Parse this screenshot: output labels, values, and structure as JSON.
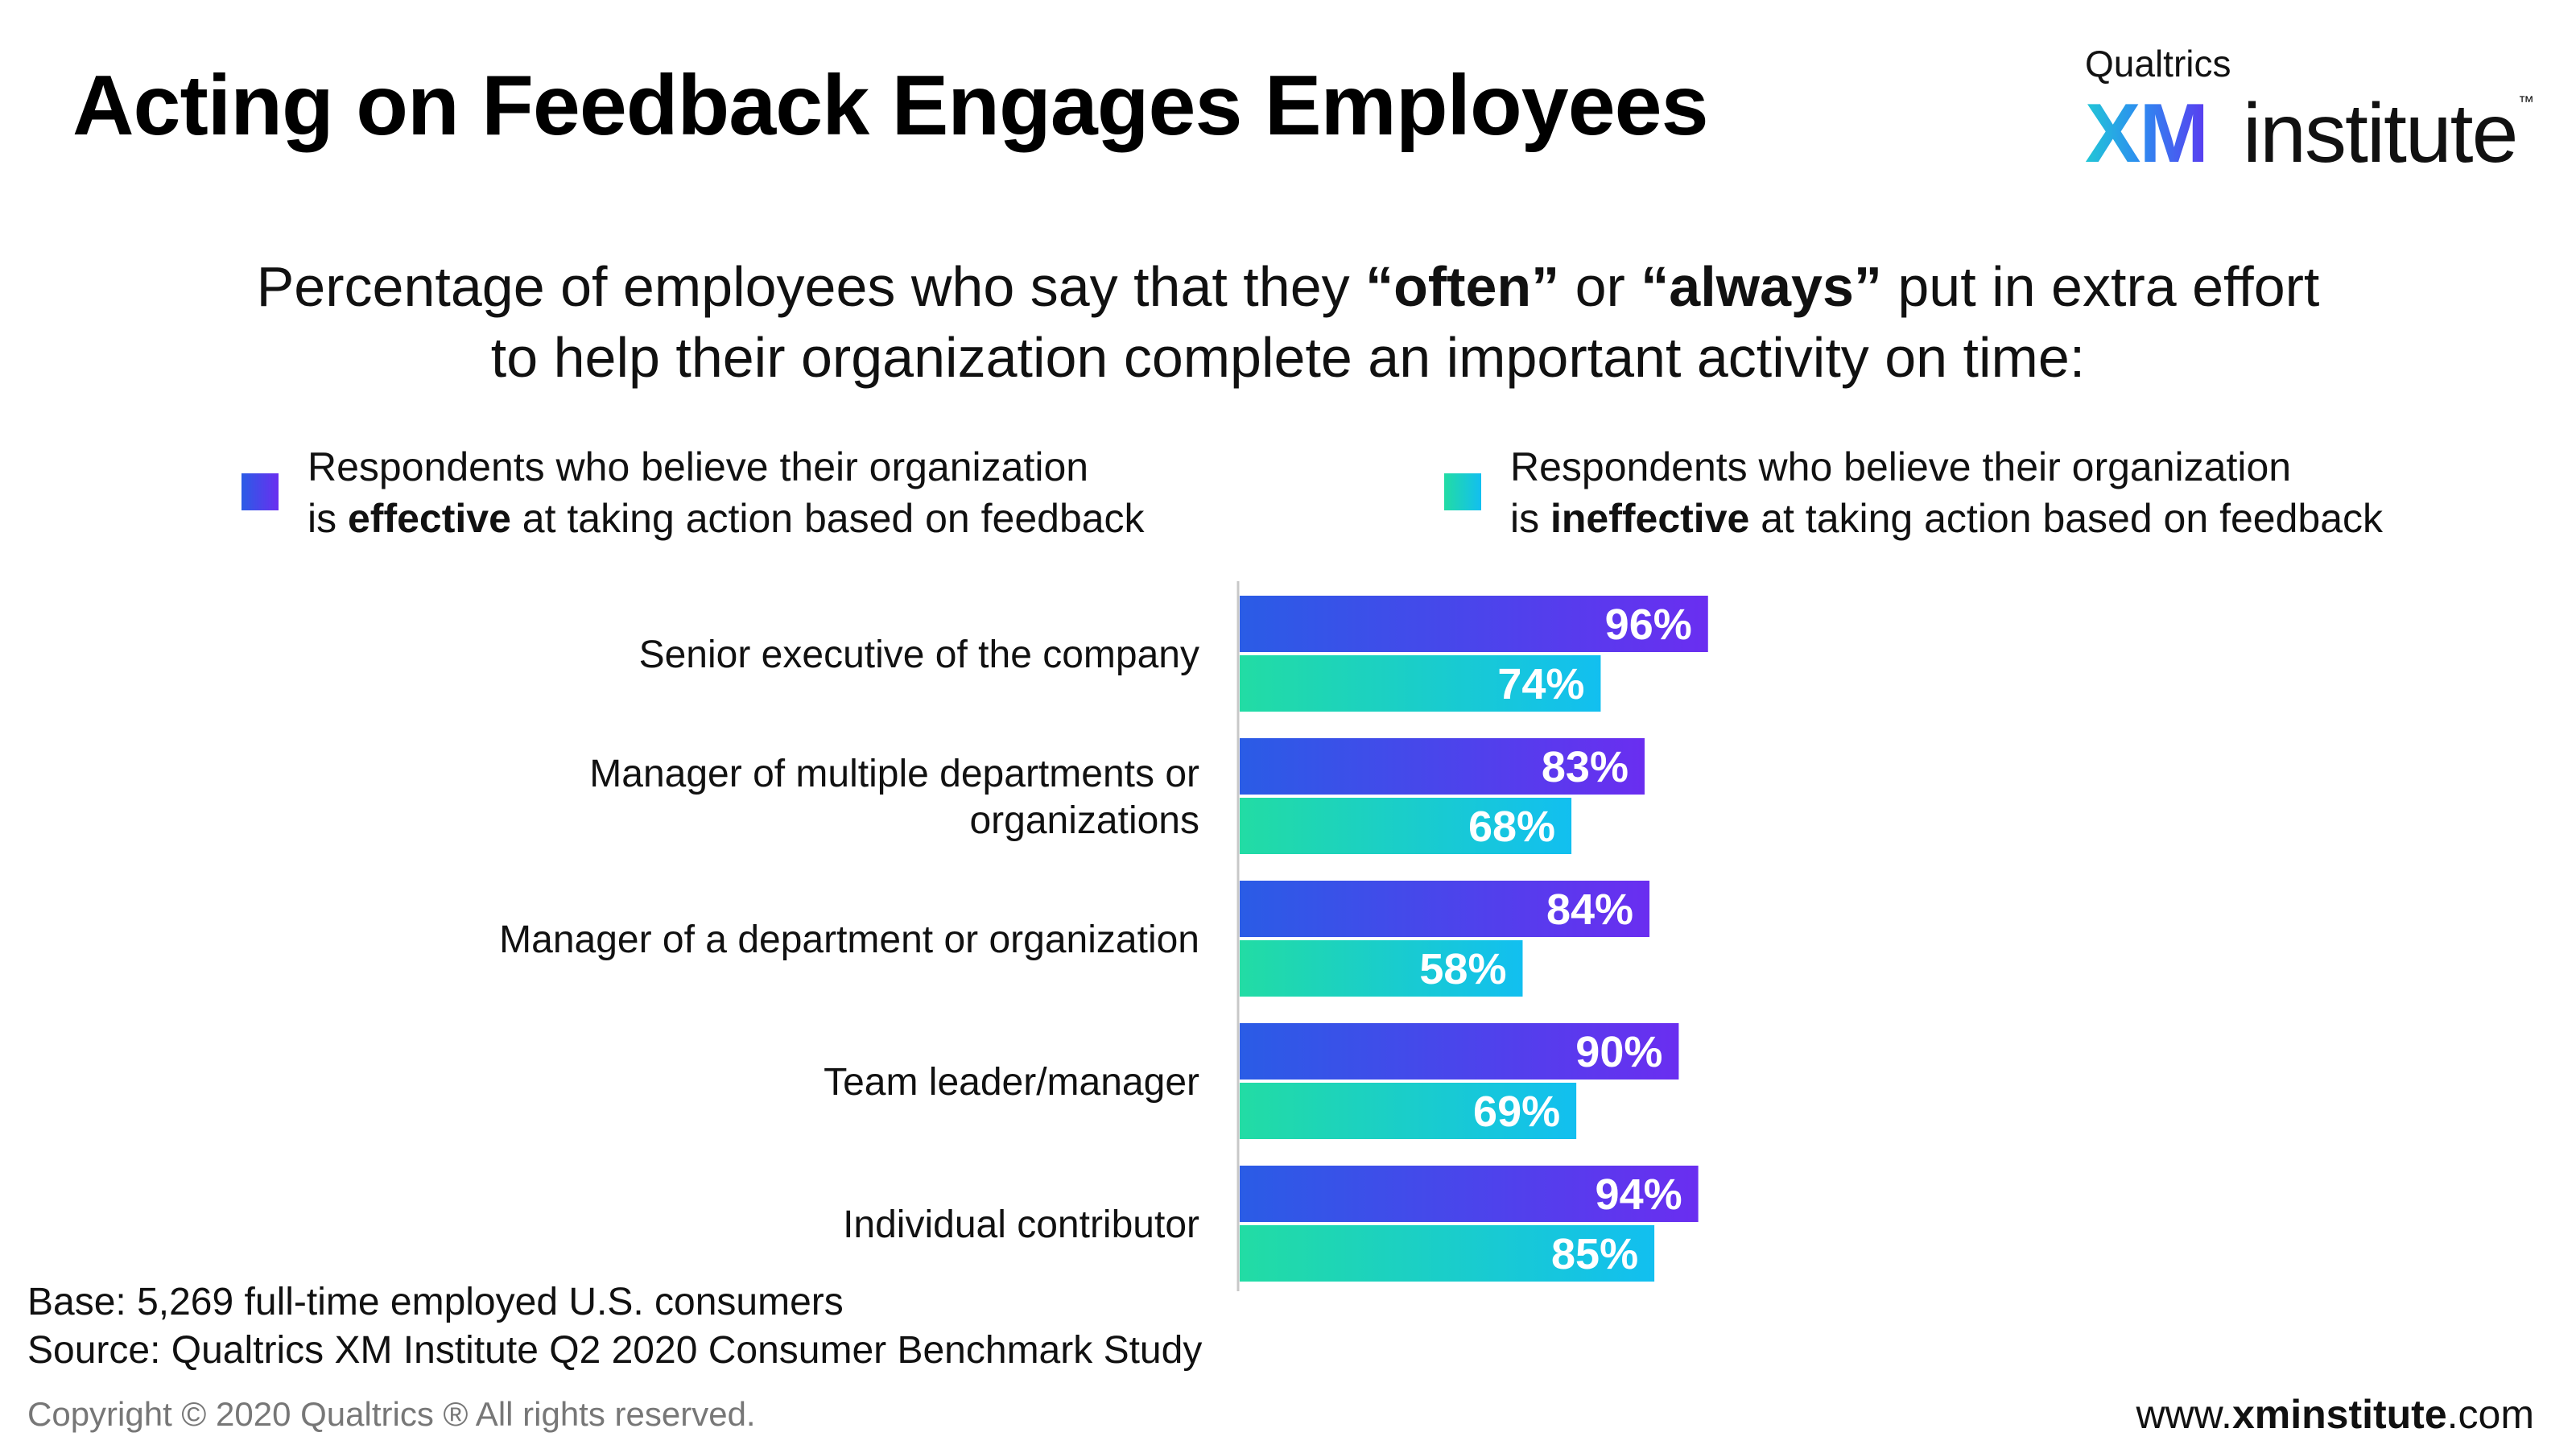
{
  "title": "Acting on Feedback Engages Employees",
  "logo": {
    "brand": "Qualtrics",
    "mark": "XM",
    "word": "institute",
    "tm": "™"
  },
  "subtitle": {
    "line1_a": "Percentage of employees who say that they ",
    "line1_b": "“often”",
    "line1_c": " or ",
    "line1_d": "“always”",
    "line1_e": " put in extra effort",
    "line2": "to help their organization complete an important activity on time:"
  },
  "legend": {
    "effective": {
      "line1": "Respondents who believe their organization",
      "pre": "is ",
      "bold": "effective",
      "post": " at taking action based on feedback"
    },
    "ineffective": {
      "line1": "Respondents who believe their organization",
      "pre": "is ",
      "bold": "ineffective",
      "post": " at taking action based on feedback"
    }
  },
  "colors": {
    "effective_start": "#2a5ce6",
    "effective_end": "#6a2ef0",
    "ineffective_start": "#22dca4",
    "ineffective_end": "#12bff0"
  },
  "chart_data": {
    "type": "bar",
    "orientation": "horizontal",
    "categories": [
      [
        "Senior executive of the company"
      ],
      [
        "Manager of multiple departments or",
        "organizations"
      ],
      [
        "Manager of a department or organization"
      ],
      [
        "Team leader/manager"
      ],
      [
        "Individual contributor"
      ]
    ],
    "series": [
      {
        "name": "Respondents who believe their organization is effective at taking action based on feedback",
        "values": [
          96,
          83,
          84,
          90,
          94
        ],
        "labels": [
          "96%",
          "83%",
          "84%",
          "90%",
          "94%"
        ]
      },
      {
        "name": "Respondents who believe their organization is ineffective at taking action based on feedback",
        "values": [
          74,
          68,
          58,
          69,
          85
        ],
        "labels": [
          "74%",
          "68%",
          "58%",
          "69%",
          "85%"
        ]
      }
    ],
    "xlim": [
      0,
      100
    ],
    "grid": false,
    "legend_position": "top"
  },
  "footer": {
    "base": "Base: 5,269 full-time employed U.S. consumers",
    "source": "Source: Qualtrics XM Institute Q2 2020 Consumer Benchmark Study",
    "copyright": "Copyright © 2020 Qualtrics ® All rights reserved.",
    "website_pre": "www.",
    "website_bold": "xminstitute",
    "website_post": ".com"
  }
}
